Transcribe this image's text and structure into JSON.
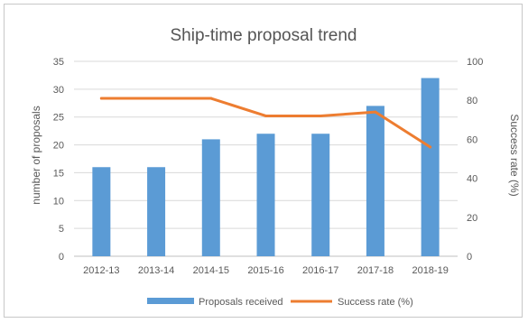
{
  "chart_data": {
    "type": "bar+line",
    "title": "Ship-time proposal trend",
    "categories": [
      "2012-13",
      "2013-14",
      "2014-15",
      "2015-16",
      "2016-17",
      "2017-18",
      "2018-19"
    ],
    "series": [
      {
        "name": "Proposals received",
        "type": "bar",
        "axis": "left",
        "color": "#5b9bd5",
        "values": [
          16,
          16,
          21,
          22,
          22,
          27,
          32
        ]
      },
      {
        "name": "Success rate (%)",
        "type": "line",
        "axis": "right",
        "color": "#ed7d31",
        "values": [
          81,
          81,
          81,
          72,
          72,
          74,
          56
        ]
      }
    ],
    "ylabel": "number of proposals",
    "ylim": [
      0,
      35
    ],
    "yticks": [
      0,
      5,
      10,
      15,
      20,
      25,
      30,
      35
    ],
    "y2label": "Success rate (%)",
    "y2lim": [
      0,
      100
    ],
    "y2ticks": [
      0,
      20,
      40,
      60,
      80,
      100
    ],
    "grid": true,
    "legend": "bottom"
  }
}
